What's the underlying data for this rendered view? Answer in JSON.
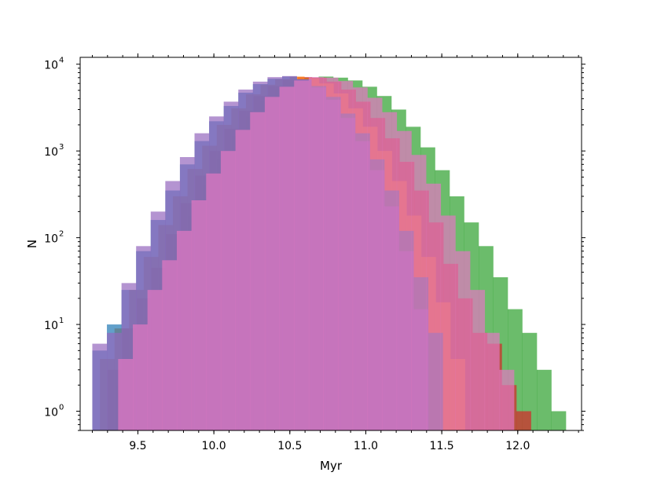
{
  "chart_data": {
    "type": "bar",
    "subtype": "overlapping-histogram",
    "title": "",
    "xlabel": "Myr",
    "ylabel": "N",
    "xlim": [
      9.12,
      12.42
    ],
    "ylim": [
      0.6,
      12000
    ],
    "yscale": "log",
    "grid": false,
    "legend": "none",
    "x_ticks": [
      {
        "value": 9.5,
        "label": "9.5"
      },
      {
        "value": 10.0,
        "label": "10.0"
      },
      {
        "value": 10.5,
        "label": "10.5"
      },
      {
        "value": 11.0,
        "label": "11.0"
      },
      {
        "value": 11.5,
        "label": "11.5"
      },
      {
        "value": 12.0,
        "label": "12.0"
      }
    ],
    "y_ticks": [
      {
        "value": 1,
        "base": "10",
        "exp": "0"
      },
      {
        "value": 10,
        "base": "10",
        "exp": "1"
      },
      {
        "value": 100,
        "base": "10",
        "exp": "2"
      },
      {
        "value": 1000,
        "base": "10",
        "exp": "3"
      },
      {
        "value": 10000,
        "base": "10",
        "exp": "4"
      }
    ],
    "series": [
      {
        "color": "#2ca02c",
        "x_start": 9.35,
        "bin_width": 0.0957,
        "values": [
          2,
          5,
          12,
          30,
          80,
          180,
          400,
          800,
          1500,
          2500,
          3800,
          5200,
          6300,
          7000,
          7200,
          7000,
          6500,
          5500,
          4300,
          3000,
          1900,
          1100,
          600,
          300,
          150,
          80,
          35,
          15,
          8,
          3,
          1
        ]
      },
      {
        "color": "#d62728",
        "x_start": 9.3,
        "bin_width": 0.0961,
        "values": [
          3,
          9,
          20,
          45,
          110,
          250,
          520,
          1000,
          1800,
          2900,
          4300,
          5600,
          6600,
          7100,
          7000,
          6300,
          5100,
          3700,
          2400,
          1400,
          750,
          350,
          150,
          50,
          20,
          8,
          6,
          2,
          1
        ]
      },
      {
        "color": "#ff7f0e",
        "x_start": 9.25,
        "bin_width": 0.0961,
        "values": [
          4,
          9,
          25,
          60,
          140,
          300,
          620,
          1150,
          2000,
          3100,
          4500,
          5800,
          6700,
          7200,
          6900,
          6000,
          4600,
          3100,
          1900,
          1000,
          450,
          180,
          60,
          18,
          4
        ]
      },
      {
        "color": "#1f77b4",
        "x_start": 9.2,
        "bin_width": 0.0961,
        "values": [
          5,
          10,
          25,
          70,
          160,
          350,
          700,
          1300,
          2200,
          3300,
          4700,
          5900,
          6800,
          7200,
          6700,
          5600,
          4200,
          2700,
          1600,
          800,
          350,
          120,
          35,
          8
        ]
      },
      {
        "color": "#9467bd",
        "x_start": 9.2,
        "bin_width": 0.0961,
        "values": [
          6,
          8,
          30,
          80,
          200,
          450,
          850,
          1600,
          2500,
          3700,
          5100,
          6300,
          7100,
          7300,
          6700,
          5400,
          3900,
          2400,
          1300,
          600,
          230,
          70,
          15
        ]
      },
      {
        "color": "#e377c2",
        "x_start": 9.37,
        "bin_width": 0.0965,
        "values": [
          4,
          10,
          25,
          55,
          120,
          270,
          550,
          1000,
          1750,
          2800,
          4200,
          5500,
          6500,
          7100,
          7000,
          6400,
          5400,
          4100,
          2800,
          1700,
          900,
          420,
          180,
          70,
          25,
          8,
          3
        ]
      }
    ]
  }
}
